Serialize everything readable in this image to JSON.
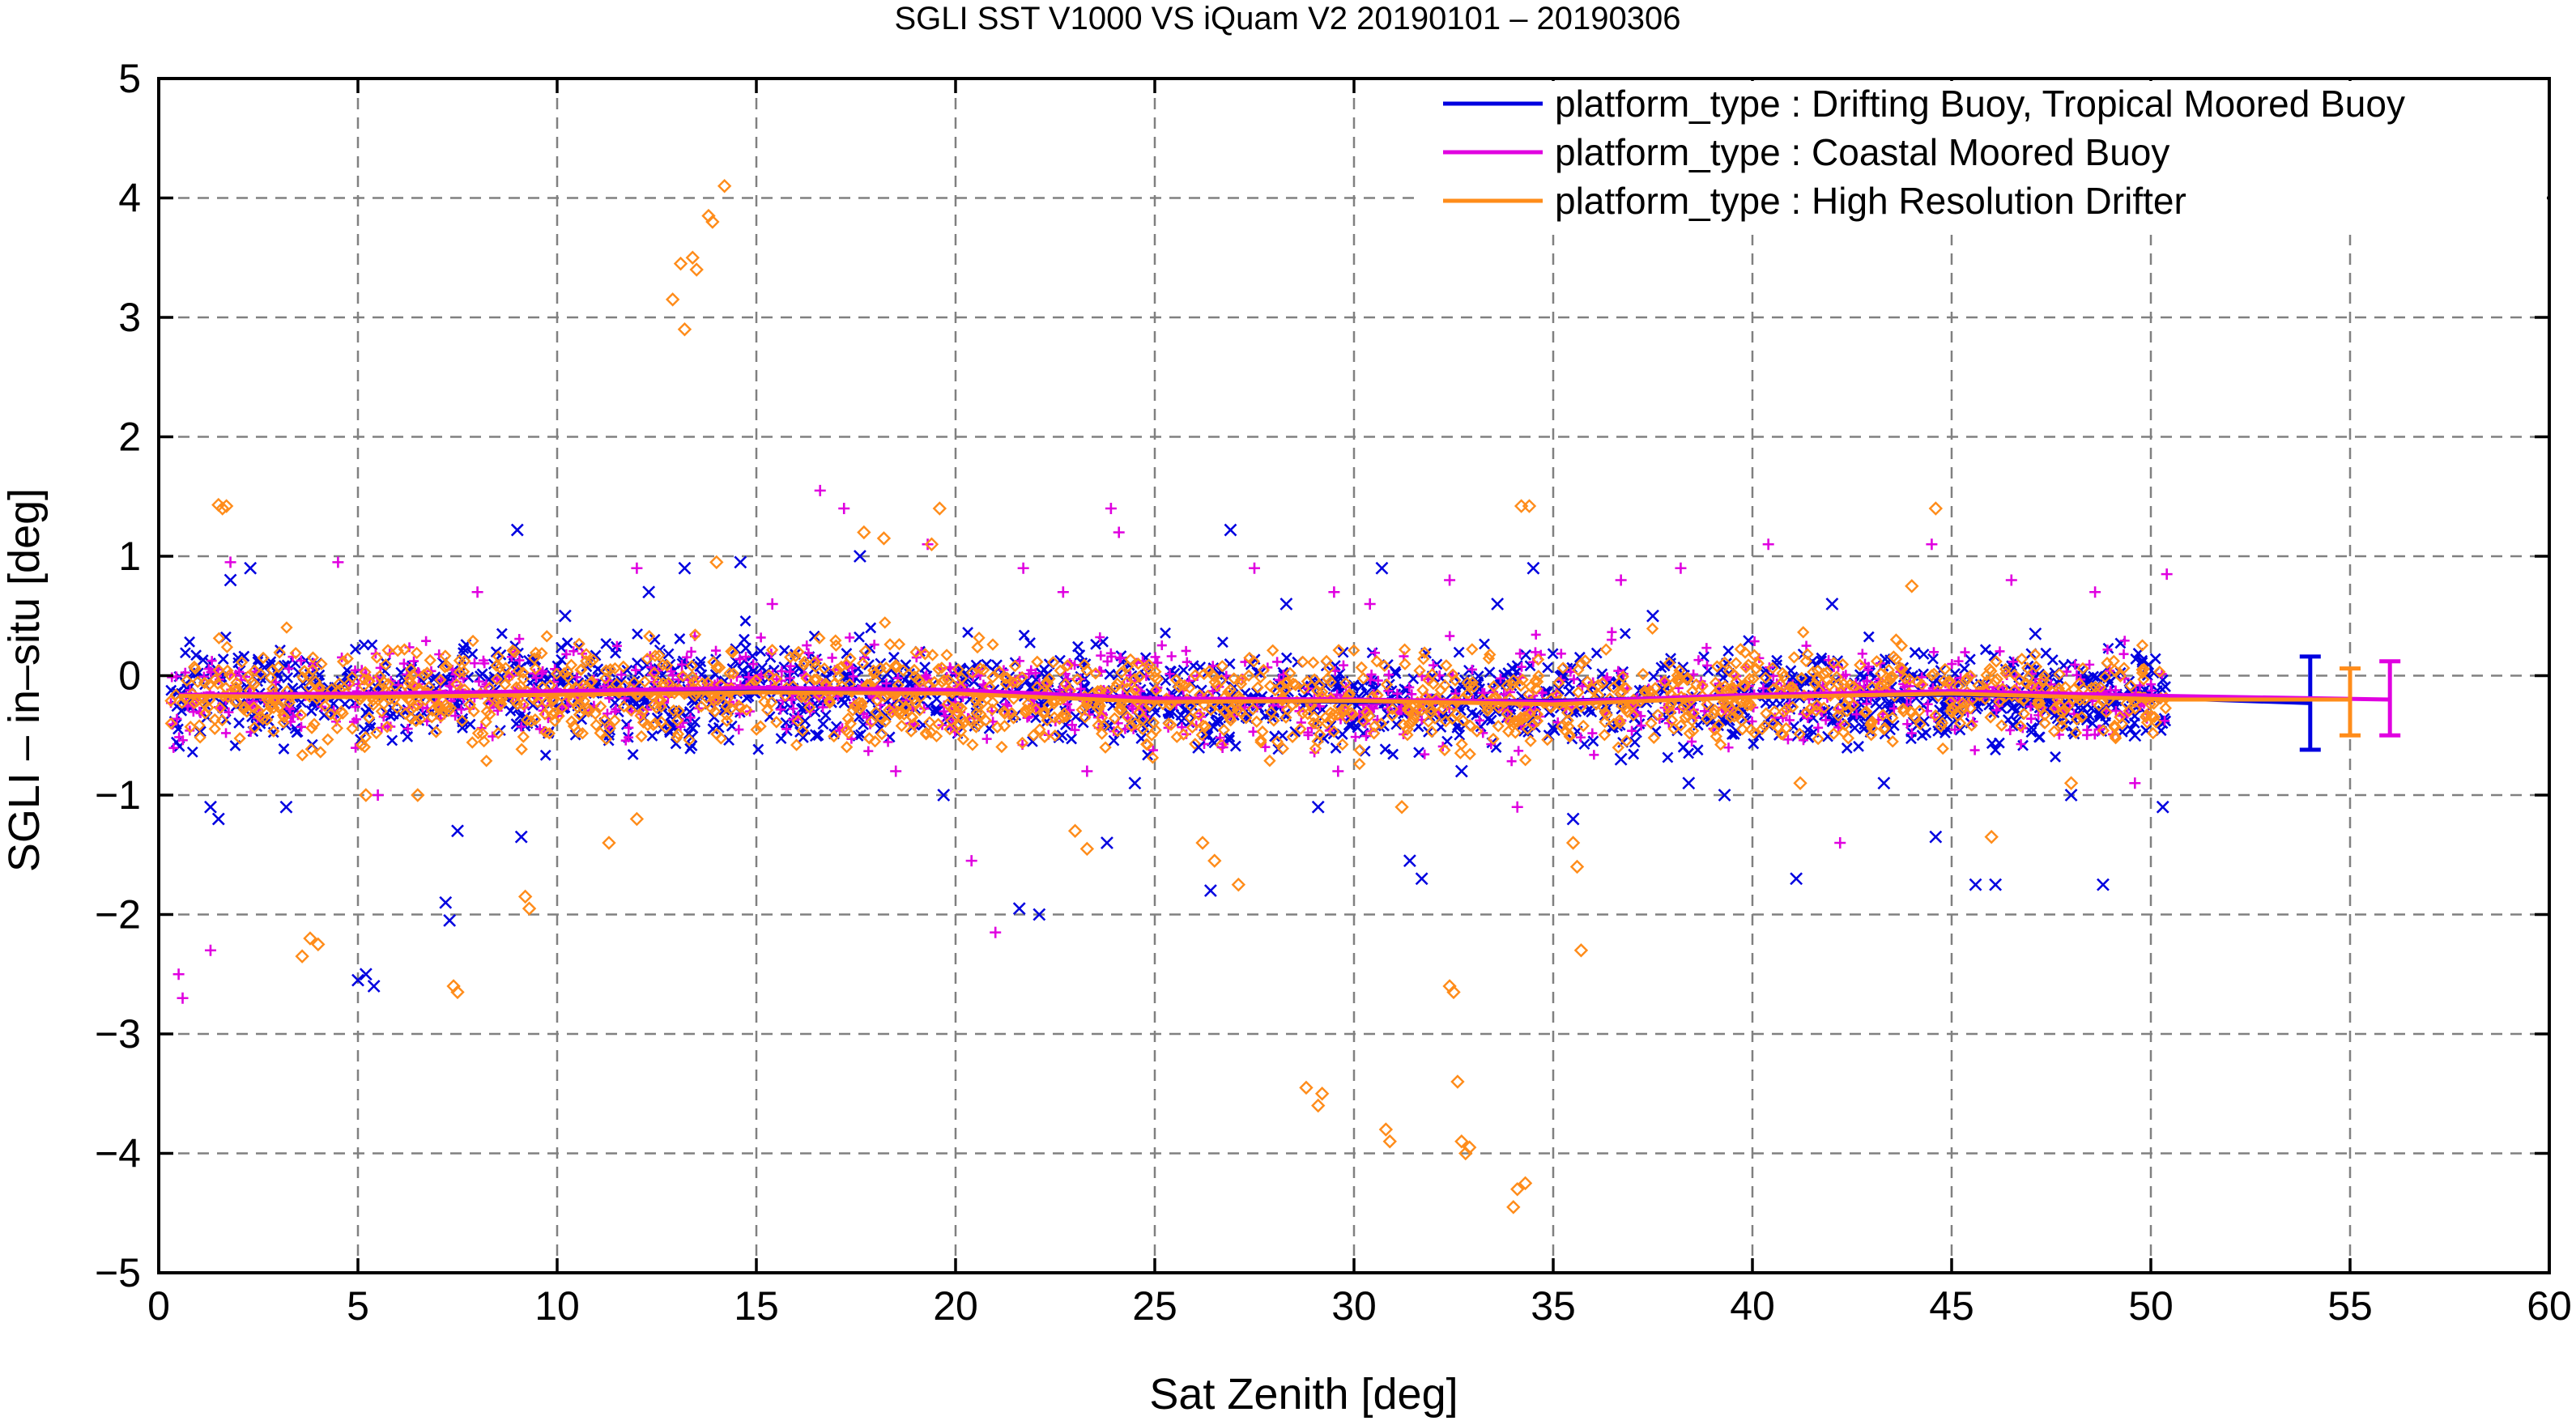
{
  "chart_data": {
    "type": "scatter",
    "title": "SGLI SST V1000 VS iQuam V2 20190101 – 20190306",
    "xlabel": "Sat Zenith [deg]",
    "ylabel": "SGLI – in–situ [deg]",
    "xlim": [
      0,
      60
    ],
    "ylim": [
      -5,
      5
    ],
    "xticks": [
      0,
      5,
      10,
      15,
      20,
      25,
      30,
      35,
      40,
      45,
      50,
      55,
      60
    ],
    "yticks": [
      -5,
      -4,
      -3,
      -2,
      -1,
      0,
      1,
      2,
      3,
      4,
      5
    ],
    "grid": true,
    "legend_position": "top-right",
    "series": [
      {
        "name": "platform_type : Drifting Buoy, Tropical Moored Buoy",
        "color": "#0000e0",
        "marker": "x",
        "mean_line": {
          "x": [
            0.5,
            5,
            10,
            15,
            20,
            25,
            30,
            35,
            40,
            45,
            50.5,
            54
          ],
          "y": [
            -0.17,
            -0.16,
            -0.15,
            -0.12,
            -0.13,
            -0.2,
            -0.22,
            -0.21,
            -0.17,
            -0.16,
            -0.19,
            -0.23
          ]
        },
        "overall_errorbar": {
          "x": 54,
          "mean": -0.23,
          "low": -0.62,
          "high": 0.16
        },
        "points": [
          [
            1.8,
            0.8
          ],
          [
            1.3,
            -1.1
          ],
          [
            1.5,
            -1.2
          ],
          [
            2.3,
            0.9
          ],
          [
            3.2,
            -1.1
          ],
          [
            5.0,
            -2.55
          ],
          [
            5.2,
            -2.5
          ],
          [
            5.4,
            -2.6
          ],
          [
            7.2,
            -1.9
          ],
          [
            7.3,
            -2.05
          ],
          [
            7.5,
            -1.3
          ],
          [
            9.0,
            1.22
          ],
          [
            9.1,
            -1.35
          ],
          [
            10.2,
            0.5
          ],
          [
            12.3,
            0.7
          ],
          [
            13.2,
            0.9
          ],
          [
            14.6,
            0.95
          ],
          [
            16.5,
            -0.5
          ],
          [
            17.6,
            1.0
          ],
          [
            19.7,
            -1.0
          ],
          [
            21.6,
            -1.95
          ],
          [
            22.1,
            -2.0
          ],
          [
            23.8,
            -1.4
          ],
          [
            24.5,
            -0.9
          ],
          [
            26.1,
            -0.6
          ],
          [
            26.4,
            -1.8
          ],
          [
            26.9,
            1.22
          ],
          [
            28.3,
            0.6
          ],
          [
            29.1,
            -1.1
          ],
          [
            30.7,
            0.9
          ],
          [
            31.4,
            -1.55
          ],
          [
            31.7,
            -1.7
          ],
          [
            32.7,
            -0.8
          ],
          [
            33.6,
            0.6
          ],
          [
            34.5,
            0.9
          ],
          [
            35.5,
            -1.2
          ],
          [
            36.7,
            -0.7
          ],
          [
            37.5,
            0.5
          ],
          [
            38.4,
            -0.9
          ],
          [
            39.3,
            -1.0
          ],
          [
            41.1,
            -1.7
          ],
          [
            42.0,
            0.6
          ],
          [
            43.3,
            -0.9
          ],
          [
            44.6,
            -1.35
          ],
          [
            45.6,
            -1.75
          ],
          [
            46.1,
            -1.75
          ],
          [
            47.1,
            0.35
          ],
          [
            48.0,
            -1.0
          ],
          [
            48.8,
            -1.75
          ],
          [
            49.6,
            -0.5
          ],
          [
            50.3,
            -1.1
          ]
        ]
      },
      {
        "name": "platform_type : Coastal Moored Buoy",
        "color": "#e000e0",
        "marker": "+",
        "mean_line": {
          "x": [
            0.5,
            5,
            10,
            15,
            20,
            25,
            30,
            35,
            40,
            45,
            50.5,
            56
          ],
          "y": [
            -0.16,
            -0.15,
            -0.13,
            -0.1,
            -0.12,
            -0.19,
            -0.2,
            -0.22,
            -0.16,
            -0.13,
            -0.17,
            -0.2
          ]
        },
        "overall_errorbar": {
          "x": 56,
          "mean": -0.2,
          "low": -0.5,
          "high": 0.12
        },
        "points": [
          [
            0.5,
            -2.5
          ],
          [
            0.6,
            -2.7
          ],
          [
            1.3,
            -2.3
          ],
          [
            1.8,
            0.95
          ],
          [
            4.5,
            0.95
          ],
          [
            5.5,
            -1.0
          ],
          [
            8.0,
            0.7
          ],
          [
            12.0,
            0.9
          ],
          [
            15.4,
            0.6
          ],
          [
            16.6,
            1.55
          ],
          [
            17.2,
            1.4
          ],
          [
            18.5,
            -0.8
          ],
          [
            19.3,
            1.1
          ],
          [
            20.4,
            -1.55
          ],
          [
            21.0,
            -2.15
          ],
          [
            21.7,
            0.9
          ],
          [
            22.7,
            0.7
          ],
          [
            23.3,
            -0.8
          ],
          [
            23.9,
            1.4
          ],
          [
            24.1,
            1.2
          ],
          [
            26.7,
            -0.6
          ],
          [
            27.5,
            0.9
          ],
          [
            29.5,
            0.7
          ],
          [
            29.6,
            -0.8
          ],
          [
            30.4,
            0.6
          ],
          [
            32.4,
            0.8
          ],
          [
            34.1,
            -1.1
          ],
          [
            36.7,
            0.8
          ],
          [
            38.2,
            0.9
          ],
          [
            40.4,
            1.1
          ],
          [
            42.2,
            -1.4
          ],
          [
            44.5,
            1.1
          ],
          [
            46.5,
            0.8
          ],
          [
            48.6,
            0.7
          ],
          [
            49.6,
            -0.9
          ],
          [
            50.4,
            0.85
          ]
        ]
      },
      {
        "name": "platform_type : High Resolution Drifter",
        "color": "#ff8c1a",
        "marker": "diamond",
        "mean_line": {
          "x": [
            0.5,
            5,
            10,
            15,
            20,
            25,
            30,
            35,
            40,
            45,
            50.5,
            55
          ],
          "y": [
            -0.17,
            -0.18,
            -0.16,
            -0.14,
            -0.15,
            -0.22,
            -0.21,
            -0.24,
            -0.18,
            -0.15,
            -0.2,
            -0.2
          ]
        },
        "overall_errorbar": {
          "x": 55,
          "mean": -0.2,
          "low": -0.5,
          "high": 0.06
        },
        "points": [
          [
            1.5,
            1.43
          ],
          [
            1.6,
            1.4
          ],
          [
            1.7,
            1.42
          ],
          [
            3.6,
            -2.35
          ],
          [
            3.8,
            -2.2
          ],
          [
            4.0,
            -2.25
          ],
          [
            5.2,
            -1.0
          ],
          [
            6.5,
            -1.0
          ],
          [
            7.4,
            -2.6
          ],
          [
            7.5,
            -2.65
          ],
          [
            9.2,
            -1.85
          ],
          [
            9.3,
            -1.95
          ],
          [
            11.3,
            -1.4
          ],
          [
            12.0,
            -1.2
          ],
          [
            12.9,
            3.15
          ],
          [
            13.1,
            3.45
          ],
          [
            13.2,
            2.9
          ],
          [
            13.4,
            3.5
          ],
          [
            13.5,
            3.4
          ],
          [
            13.8,
            3.85
          ],
          [
            13.9,
            3.8
          ],
          [
            14.2,
            4.1
          ],
          [
            14.0,
            0.95
          ],
          [
            17.7,
            1.2
          ],
          [
            18.2,
            1.15
          ],
          [
            19.6,
            1.4
          ],
          [
            19.4,
            1.1
          ],
          [
            23.0,
            -1.3
          ],
          [
            23.3,
            -1.45
          ],
          [
            26.2,
            -1.4
          ],
          [
            26.5,
            -1.55
          ],
          [
            27.1,
            -1.75
          ],
          [
            28.8,
            -3.45
          ],
          [
            29.2,
            -3.5
          ],
          [
            29.1,
            -3.6
          ],
          [
            30.8,
            -3.8
          ],
          [
            30.9,
            -3.9
          ],
          [
            31.2,
            -1.1
          ],
          [
            32.4,
            -2.6
          ],
          [
            32.5,
            -2.65
          ],
          [
            32.6,
            -3.4
          ],
          [
            32.7,
            -3.9
          ],
          [
            32.8,
            -4.0
          ],
          [
            32.9,
            -3.95
          ],
          [
            34.0,
            -4.45
          ],
          [
            34.1,
            -4.3
          ],
          [
            34.3,
            -4.25
          ],
          [
            34.2,
            1.42
          ],
          [
            34.4,
            1.42
          ],
          [
            35.5,
            -1.4
          ],
          [
            35.6,
            -1.6
          ],
          [
            35.7,
            -2.3
          ],
          [
            41.2,
            -0.9
          ],
          [
            44.6,
            1.4
          ],
          [
            44.0,
            0.75
          ],
          [
            46.0,
            -1.35
          ],
          [
            48.0,
            -0.9
          ]
        ]
      }
    ]
  }
}
